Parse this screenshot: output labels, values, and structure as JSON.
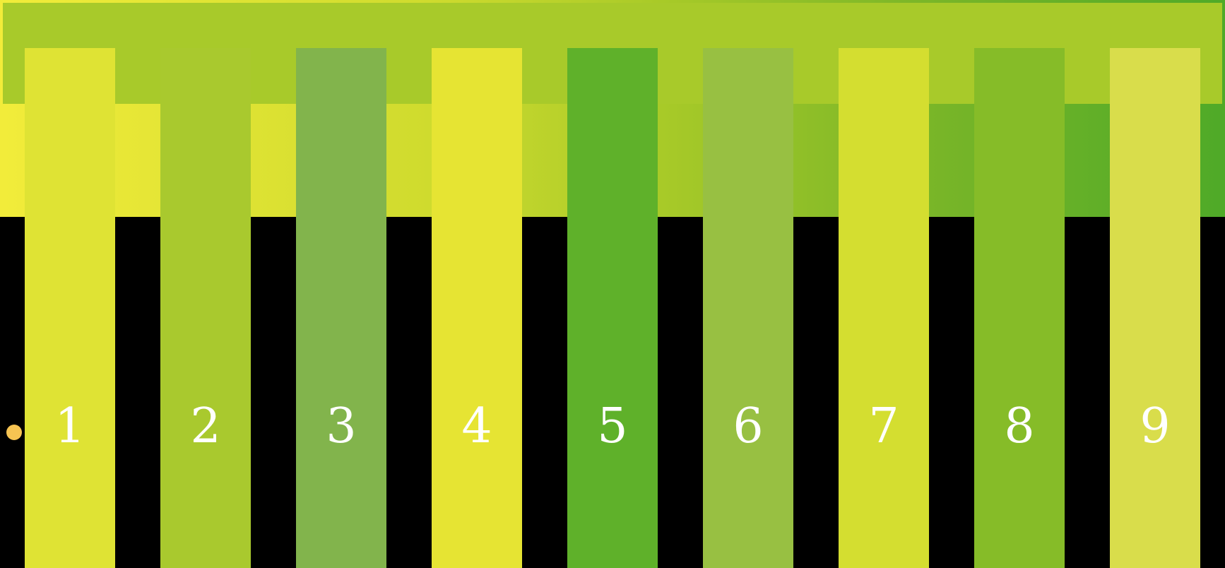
{
  "colors": {
    "background": "#000000",
    "top_bar": "#a8ca2a",
    "number_text": "#ffffff",
    "indicator": "#f6c452"
  },
  "indicator": {
    "icon": "circle-dot-icon"
  },
  "keys": [
    {
      "number": "1",
      "color": "#dfe334"
    },
    {
      "number": "2",
      "color": "#a9c92e"
    },
    {
      "number": "3",
      "color": "#82b44c"
    },
    {
      "number": "4",
      "color": "#e6e433"
    },
    {
      "number": "5",
      "color": "#5fb12a"
    },
    {
      "number": "6",
      "color": "#98c042"
    },
    {
      "number": "7",
      "color": "#d4de30"
    },
    {
      "number": "8",
      "color": "#86bc28"
    },
    {
      "number": "9",
      "color": "#d9dd4b"
    }
  ]
}
